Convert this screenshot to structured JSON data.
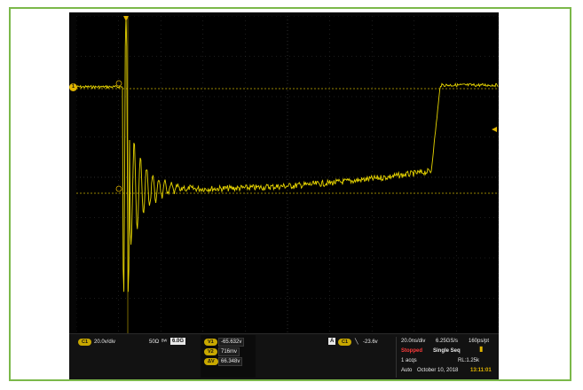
{
  "channel": {
    "badge": "C1",
    "scale": "20.0v/div",
    "impedance": "50Ω",
    "bandwidth_icon": "bandwidth-icon",
    "bandwidth": "6.0G",
    "marker": "1"
  },
  "measurements": [
    {
      "badge": "V1",
      "value": "-65.632v"
    },
    {
      "badge": "V2",
      "value": "716mv"
    },
    {
      "badge": "ΔV",
      "value": "66.348v"
    }
  ],
  "trigger": {
    "mode_badge": "A",
    "source_badge": "C1",
    "slope_icon": "falling-edge-icon",
    "level": "-23.6v"
  },
  "acquisition": {
    "timebase": "20.0ns/div",
    "sample_rate": "6.25GS/s",
    "resolution": "160ps/pt",
    "state": "Stopped",
    "sequence": "Single Seq",
    "acqs": "1 acqs",
    "record_length": "RL:1.25k",
    "mode": "Auto",
    "date": "October 10, 2018",
    "time": "13:11:01"
  },
  "colors": {
    "trace": "#e6d400",
    "grid": "#3a3a3a",
    "cursor": "#c8b000",
    "background": "#000000",
    "frame": "#7bb84a"
  }
}
